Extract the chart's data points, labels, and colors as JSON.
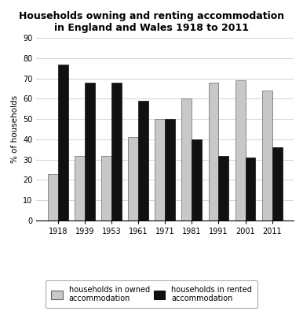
{
  "title_line1": "Households owning and renting accommodation",
  "title_line2": "in England and Wales 1918 to 2011",
  "years": [
    "1918",
    "1939",
    "1953",
    "1961",
    "1971",
    "1981",
    "1991",
    "2001",
    "2011"
  ],
  "owned": [
    23,
    32,
    32,
    41,
    50,
    60,
    68,
    69,
    64
  ],
  "rented": [
    77,
    68,
    68,
    59,
    50,
    40,
    32,
    31,
    36
  ],
  "owned_color": "#c8c8c8",
  "rented_color": "#111111",
  "ylabel": "% of households",
  "ylim": [
    0,
    90
  ],
  "yticks": [
    0,
    10,
    20,
    30,
    40,
    50,
    60,
    70,
    80,
    90
  ],
  "legend_owned": "households in owned\naccommodation",
  "legend_rented": "households in rented\naccommodation",
  "bar_width": 0.38,
  "title_fontsize": 9,
  "axis_fontsize": 7.5,
  "tick_fontsize": 7,
  "legend_fontsize": 7,
  "background_color": "#ffffff"
}
